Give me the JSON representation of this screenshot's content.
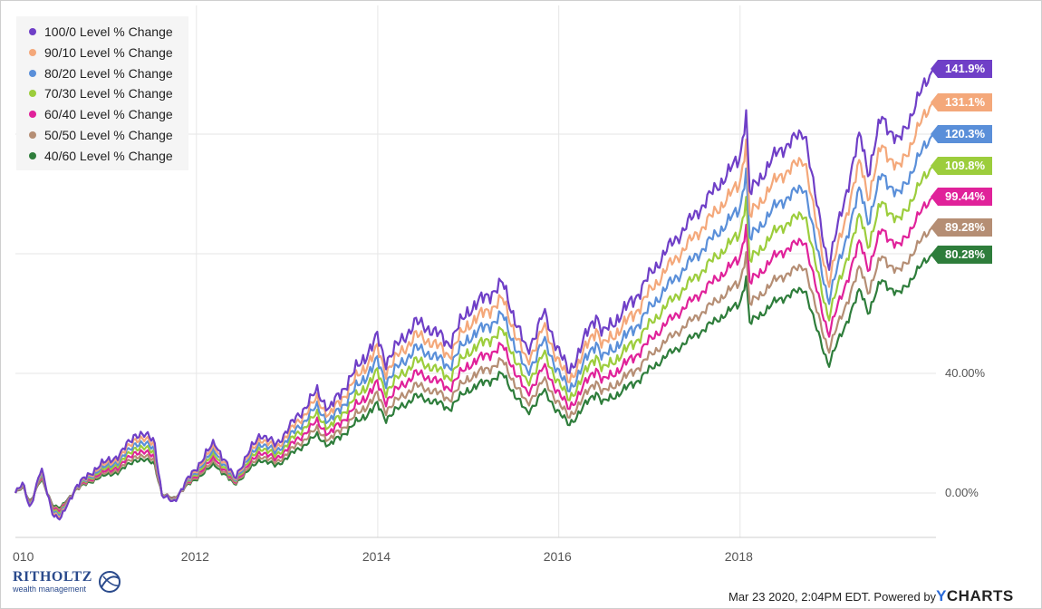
{
  "chart_data": {
    "type": "line",
    "x_range": [
      "2010-01-01",
      "2020-03-01"
    ],
    "ylim": [
      -20,
      150
    ],
    "y_ticks": [
      {
        "value": 0,
        "label": "0.00%"
      },
      {
        "value": 40,
        "label": "40.00%"
      }
    ],
    "x_ticks": [
      {
        "date": "2010-01-01",
        "label": "010"
      },
      {
        "date": "2012-01-01",
        "label": "2012"
      },
      {
        "date": "2014-01-01",
        "label": "2014"
      },
      {
        "date": "2016-01-01",
        "label": "2016"
      },
      {
        "date": "2018-01-01",
        "label": "2018"
      }
    ],
    "grid": "vertical and horizontal",
    "legend_position": "top-left",
    "base_series_anchors": [
      {
        "date": "2010-01-01",
        "value": 0
      },
      {
        "date": "2010-02-01",
        "value": 3
      },
      {
        "date": "2010-03-01",
        "value": -5
      },
      {
        "date": "2010-04-15",
        "value": 8
      },
      {
        "date": "2010-06-01",
        "value": -7
      },
      {
        "date": "2010-07-01",
        "value": -9
      },
      {
        "date": "2010-09-01",
        "value": 2
      },
      {
        "date": "2010-12-01",
        "value": 9
      },
      {
        "date": "2011-03-01",
        "value": 13
      },
      {
        "date": "2011-05-01",
        "value": 20
      },
      {
        "date": "2011-07-15",
        "value": 18
      },
      {
        "date": "2011-08-15",
        "value": -1
      },
      {
        "date": "2011-10-01",
        "value": -3
      },
      {
        "date": "2011-12-01",
        "value": 5
      },
      {
        "date": "2012-03-15",
        "value": 17
      },
      {
        "date": "2012-06-01",
        "value": 5
      },
      {
        "date": "2012-09-15",
        "value": 20
      },
      {
        "date": "2012-11-15",
        "value": 16
      },
      {
        "date": "2013-05-01",
        "value": 34
      },
      {
        "date": "2013-06-20",
        "value": 28
      },
      {
        "date": "2013-12-31",
        "value": 52
      },
      {
        "date": "2014-02-01",
        "value": 44
      },
      {
        "date": "2014-06-01",
        "value": 57
      },
      {
        "date": "2014-08-01",
        "value": 55
      },
      {
        "date": "2014-10-15",
        "value": 50
      },
      {
        "date": "2014-12-31",
        "value": 61
      },
      {
        "date": "2015-05-20",
        "value": 70
      },
      {
        "date": "2015-08-25",
        "value": 47
      },
      {
        "date": "2015-11-01",
        "value": 60
      },
      {
        "date": "2016-02-10",
        "value": 40
      },
      {
        "date": "2016-06-01",
        "value": 60
      },
      {
        "date": "2016-06-27",
        "value": 53
      },
      {
        "date": "2016-11-01",
        "value": 65
      },
      {
        "date": "2017-03-01",
        "value": 80
      },
      {
        "date": "2017-12-31",
        "value": 112
      },
      {
        "date": "2018-01-26",
        "value": 128
      },
      {
        "date": "2018-02-08",
        "value": 100
      },
      {
        "date": "2018-06-01",
        "value": 114
      },
      {
        "date": "2018-09-20",
        "value": 121
      },
      {
        "date": "2018-10-29",
        "value": 100
      },
      {
        "date": "2018-12-24",
        "value": 76
      },
      {
        "date": "2019-04-30",
        "value": 120
      },
      {
        "date": "2019-06-03",
        "value": 107
      },
      {
        "date": "2019-07-26",
        "value": 126
      },
      {
        "date": "2019-10-02",
        "value": 117
      },
      {
        "date": "2020-01-17",
        "value": 137
      },
      {
        "date": "2020-02-19",
        "value": 141.9
      }
    ],
    "series": [
      {
        "name": "100/0 Level % Change",
        "color": "#6f3fc7",
        "final_value": 141.9,
        "final_label": "141.9%"
      },
      {
        "name": "90/10 Level % Change",
        "color": "#f4a87a",
        "final_value": 131.1,
        "final_label": "131.1%"
      },
      {
        "name": "80/20 Level % Change",
        "color": "#5a8fd9",
        "final_value": 120.3,
        "final_label": "120.3%"
      },
      {
        "name": "70/30 Level % Change",
        "color": "#9ccd3c",
        "final_value": 109.8,
        "final_label": "109.8%"
      },
      {
        "name": "60/40 Level % Change",
        "color": "#e0229a",
        "final_value": 99.44,
        "final_label": "99.44%"
      },
      {
        "name": "50/50 Level % Change",
        "color": "#b58e74",
        "final_value": 89.28,
        "final_label": "89.28%"
      },
      {
        "name": "40/60 Level % Change",
        "color": "#2e7d3b",
        "final_value": 80.28,
        "final_label": "80.28%"
      }
    ]
  },
  "logo": {
    "name": "RITHOLTZ",
    "sub": "wealth management"
  },
  "footer": {
    "timestamp": "Mar 23 2020, 2:04PM EDT. Powered by",
    "brand_y": "Y",
    "brand_rest": "CHARTS"
  }
}
